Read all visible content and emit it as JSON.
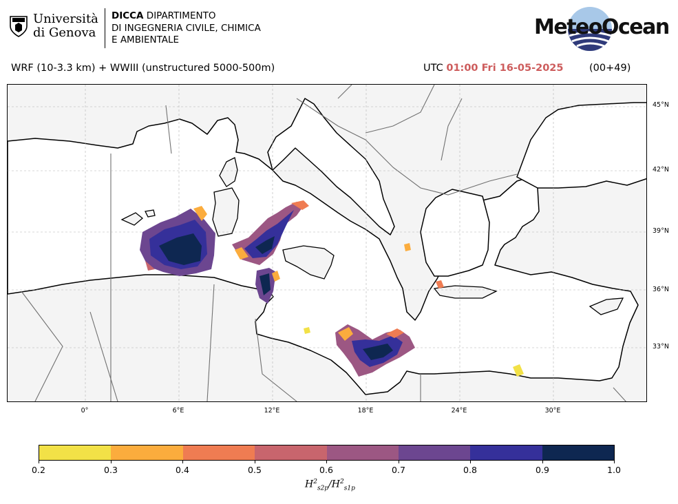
{
  "header": {
    "university_line1": "Università",
    "university_line2": "di Genova",
    "dept_bold": "DICCA",
    "dept_line1": "DIPARTIMENTO",
    "dept_line2": "DI INGEGNERIA CIVILE, CHIMICA",
    "dept_line3": "E AMBIENTALE",
    "brand": "MeteoOcean"
  },
  "title": {
    "model": "WRF (10-3.3 km) + WWIII (unstructured 5000-500m)",
    "utc_prefix": "UTC",
    "time": "01:00 Fri 16-05-2025",
    "step": "(00+49)"
  },
  "map": {
    "lat_labels": [
      "45°N",
      "42°N",
      "39°N",
      "36°N",
      "33°N"
    ],
    "lon_labels": [
      "0°",
      "6°E",
      "12°E",
      "18°E",
      "24°E",
      "30°E"
    ],
    "land_color": "#f4f4f4",
    "sea_color": "#ffffff",
    "coast_color": "#000000",
    "border_color": "#707070"
  },
  "colorbar": {
    "ticks": [
      "0.2",
      "0.3",
      "0.4",
      "0.5",
      "0.6",
      "0.7",
      "0.8",
      "0.9",
      "1.0"
    ],
    "colors": [
      "#f2e147",
      "#fbac3d",
      "#ef7c52",
      "#c8656d",
      "#9c5783",
      "#6c4690",
      "#35309a",
      "#0e2751"
    ],
    "label_base": "H",
    "label_sub1": "s2p",
    "label_sub2": "s1p",
    "label_sup": "2"
  }
}
